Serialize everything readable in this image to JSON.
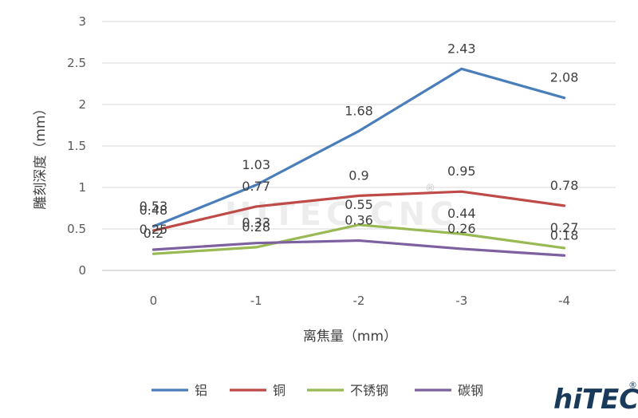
{
  "chart_data": {
    "type": "line",
    "title": "",
    "xlabel": "离焦量（mm）",
    "ylabel": "雕刻深度（mm）",
    "categories": [
      "0",
      "-1",
      "-2",
      "-3",
      "-4"
    ],
    "ylim": [
      0,
      3
    ],
    "yticks": [
      "0",
      "0.5",
      "1",
      "1.5",
      "2",
      "2.5",
      "3"
    ],
    "grid": true,
    "legend_position": "bottom",
    "series": [
      {
        "name": "铝",
        "color": "#4a7ebb",
        "values": [
          0.53,
          1.03,
          1.68,
          2.43,
          2.08
        ]
      },
      {
        "name": "铜",
        "color": "#be4b48",
        "values": [
          0.48,
          0.77,
          0.9,
          0.95,
          0.78
        ]
      },
      {
        "name": "不锈钢",
        "color": "#98b954",
        "values": [
          0.2,
          0.28,
          0.55,
          0.44,
          0.27
        ]
      },
      {
        "name": "碳钢",
        "color": "#7d60a0",
        "values": [
          0.25,
          0.33,
          0.36,
          0.26,
          0.18
        ]
      }
    ],
    "data_labels": [
      {
        "series": 0,
        "labels": [
          "0.53",
          "1.03",
          "1.68",
          "2.43",
          "2.08"
        ]
      },
      {
        "series": 1,
        "labels": [
          "0.48",
          "0.77",
          "0.9",
          "0.95",
          "0.78"
        ]
      },
      {
        "series": 2,
        "labels": [
          "0.2",
          "0.28",
          "0.55",
          "0.44",
          "0.27"
        ]
      },
      {
        "series": 3,
        "labels": [
          "0.25",
          "0.33",
          "0.36",
          "0.26",
          "0.18"
        ]
      }
    ]
  },
  "watermark": {
    "text": "HITEC CNC",
    "mark": "®"
  },
  "logo": {
    "text": "hiTEC",
    "mark": "®",
    "color": "#1a3a5c"
  }
}
